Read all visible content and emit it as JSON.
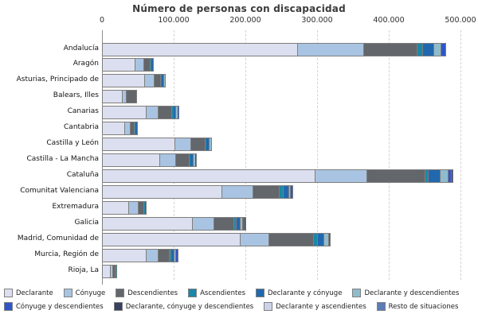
{
  "chart_data": {
    "type": "bar",
    "orientation": "horizontal",
    "stacked": true,
    "title": "Número de personas con discapacidad",
    "xlabel": "",
    "ylabel": "",
    "xlim": [
      0,
      500000
    ],
    "grid": "vertical-dashed",
    "legend_position": "bottom",
    "x_ticks": [
      {
        "value": 0,
        "label": "0"
      },
      {
        "value": 100000,
        "label": "100.000"
      },
      {
        "value": 200000,
        "label": "200.000"
      },
      {
        "value": 300000,
        "label": "300.000"
      },
      {
        "value": 400000,
        "label": "400.000"
      },
      {
        "value": 500000,
        "label": "500.000"
      }
    ],
    "categories": [
      "Andalucía",
      "Aragón",
      "Asturias, Principado de",
      "Balears, Illes",
      "Canarias",
      "Cantabria",
      "Castilla y León",
      "Castilla - La Mancha",
      "Cataluña",
      "Comunitat Valenciana",
      "Extremadura",
      "Galicia",
      "Madrid, Comunidad de",
      "Murcia, Región de",
      "Rioja, La"
    ],
    "series": [
      {
        "name": "Declarante",
        "color": "#dcdfef",
        "values": [
          272000,
          45500,
          59000,
          28000,
          61000,
          31000,
          101000,
          80000,
          296500,
          166500,
          36500,
          125000,
          192000,
          61000,
          11000
        ]
      },
      {
        "name": "Cónyuge",
        "color": "#a9c4e2",
        "values": [
          92000,
          12000,
          13500,
          5500,
          16500,
          8000,
          22000,
          22000,
          72000,
          43500,
          13500,
          31000,
          40000,
          16500,
          3500
        ]
      },
      {
        "name": "Descendientes",
        "color": "#63666b",
        "values": [
          74500,
          9000,
          9000,
          13000,
          19000,
          5500,
          20000,
          19000,
          81000,
          36500,
          8000,
          27000,
          62500,
          15500,
          3500
        ]
      },
      {
        "name": "Ascendientes",
        "color": "#1a88a8",
        "values": [
          8000,
          1000,
          1000,
          0,
          2000,
          1000,
          1000,
          1500,
          5500,
          5500,
          1000,
          3500,
          5500,
          2500,
          500
        ]
      },
      {
        "name": "Declarante y cónyuge",
        "color": "#2268ae",
        "values": [
          15500,
          2500,
          3500,
          0,
          3500,
          2500,
          4500,
          4500,
          16500,
          8000,
          1500,
          6000,
          9000,
          4500,
          500
        ]
      },
      {
        "name": "Declarante y descendientes",
        "color": "#8fbccd",
        "values": [
          10000,
          0,
          1000,
          0,
          2000,
          0,
          2500,
          2000,
          11000,
          2500,
          0,
          3000,
          6500,
          2500,
          0
        ]
      },
      {
        "name": "Cónyuge y descendientes",
        "color": "#2f55cb",
        "values": [
          5500,
          0,
          0,
          0,
          1000,
          0,
          0,
          1000,
          4500,
          2000,
          0,
          2500,
          1000,
          1500,
          0
        ]
      },
      {
        "name": "Declarante, cónyuge y descendientes",
        "color": "#36425e",
        "values": [
          0,
          0,
          0,
          0,
          0,
          0,
          0,
          0,
          1000,
          0,
          0,
          1000,
          0,
          0,
          0
        ]
      },
      {
        "name": "Declarante y ascendientes",
        "color": "#ccd3e8",
        "values": [
          0,
          0,
          0,
          0,
          0,
          0,
          0,
          0,
          0,
          0,
          0,
          0,
          0,
          0,
          0
        ]
      },
      {
        "name": "Resto de situaciones",
        "color": "#5c7cb8",
        "values": [
          0,
          0,
          0,
          0,
          0,
          0,
          0,
          0,
          0,
          0,
          0,
          0,
          0,
          0,
          0
        ]
      }
    ],
    "legend_rows": [
      6,
      4
    ]
  }
}
